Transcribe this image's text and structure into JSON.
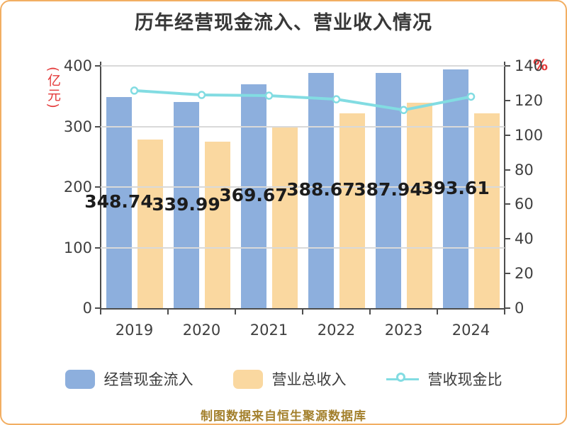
{
  "title": "历年经营现金流入、营业收入情况",
  "footer": "制图数据来自恒生聚源数据库",
  "colors": {
    "bar_blue": "#8dafdd",
    "bar_orange": "#fad8a0",
    "line_cyan": "#82dce2",
    "axis": "#4d4d4d",
    "gridline": "#d9d9d9",
    "axis_unit_red": "#e43a3a",
    "bar_value_text": "#1c1c1c",
    "tick_text": "#3f3f3f",
    "footer_text": "#a3802c",
    "frame_border": "#f2ae62"
  },
  "chart_data": {
    "type": "bar",
    "title": "历年经营现金流入、营业收入情况",
    "categories": [
      "2019",
      "2020",
      "2021",
      "2022",
      "2023",
      "2024"
    ],
    "series": [
      {
        "name": "经营现金流入",
        "type": "bar",
        "axis": "left",
        "color": "#8dafdd",
        "values": [
          348.74,
          339.99,
          369.67,
          388.67,
          387.94,
          393.61
        ],
        "data_labels": [
          "348.74",
          "339.99",
          "369.67",
          "388.67",
          "387.94",
          "393.61"
        ]
      },
      {
        "name": "营业总收入",
        "type": "bar",
        "axis": "left",
        "color": "#fad8a0",
        "values": [
          278,
          275,
          301,
          322,
          339,
          322
        ]
      },
      {
        "name": "营收现金比",
        "type": "line",
        "axis": "right",
        "color": "#82dce2",
        "marker": "circle-white-fill",
        "values": [
          125.7,
          123.2,
          122.8,
          120.7,
          114.5,
          122.2
        ]
      }
    ],
    "left_axis": {
      "label": "(亿元)",
      "min": 0,
      "max": 400,
      "ticks": [
        0,
        100,
        200,
        300,
        400
      ]
    },
    "right_axis": {
      "label": "%",
      "min": 0,
      "max": 140,
      "ticks": [
        0,
        20,
        40,
        60,
        80,
        100,
        120,
        140
      ]
    },
    "grid": true,
    "legend_position": "bottom"
  }
}
